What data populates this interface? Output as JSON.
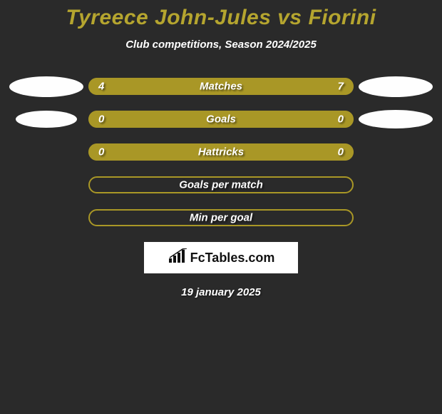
{
  "background_color": "#2a2a2a",
  "title": {
    "text": "Tyreece John-Jules vs Fiorini",
    "color": "#b5a52f",
    "fontsize": 30
  },
  "subtitle": {
    "text": "Club competitions, Season 2024/2025",
    "color": "#ffffff",
    "fontsize": 15
  },
  "left_badge": {
    "ellipse_color": "#fefefe",
    "ellipse_width": 104,
    "ellipse_height": 29
  },
  "right_badge": {
    "ellipse_color": "#fefefe",
    "ellipse_width": 104,
    "ellipse_height": 29
  },
  "bar_style": {
    "track_color": "#a99726",
    "border_color": "#a99726",
    "label_color": "#ffffff",
    "value_color": "#ffffff",
    "label_fontsize": 15,
    "value_fontsize": 15,
    "height": 24,
    "radius": 12
  },
  "stats": [
    {
      "label": "Matches",
      "left_value": "4",
      "right_value": "7",
      "left_pct": 36.4,
      "right_pct": 63.6,
      "left_fill": "#a99726",
      "right_fill": "#a99726",
      "show_badges": true
    },
    {
      "label": "Goals",
      "left_value": "0",
      "right_value": "0",
      "left_pct": 50,
      "right_pct": 50,
      "left_fill": "#a99726",
      "right_fill": "#a99726",
      "show_badges": true,
      "badge_left_width": 86,
      "badge_left_height": 24,
      "badge_right_width": 104,
      "badge_right_height": 26
    },
    {
      "label": "Hattricks",
      "left_value": "0",
      "right_value": "0",
      "left_pct": 50,
      "right_pct": 50,
      "left_fill": "#a99726",
      "right_fill": "#a99726",
      "show_badges": false
    },
    {
      "label": "Goals per match",
      "left_value": "",
      "right_value": "",
      "left_pct": 0,
      "right_pct": 0,
      "left_fill": "#a99726",
      "right_fill": "#a99726",
      "show_badges": false,
      "outline_only": true
    },
    {
      "label": "Min per goal",
      "left_value": "",
      "right_value": "",
      "left_pct": 0,
      "right_pct": 0,
      "left_fill": "#a99726",
      "right_fill": "#a99726",
      "show_badges": false,
      "outline_only": true
    }
  ],
  "logo": {
    "text": "FcTables.com",
    "text_color": "#111111",
    "bg_color": "#ffffff"
  },
  "date": {
    "text": "19 january 2025",
    "color": "#ffffff",
    "fontsize": 15
  }
}
